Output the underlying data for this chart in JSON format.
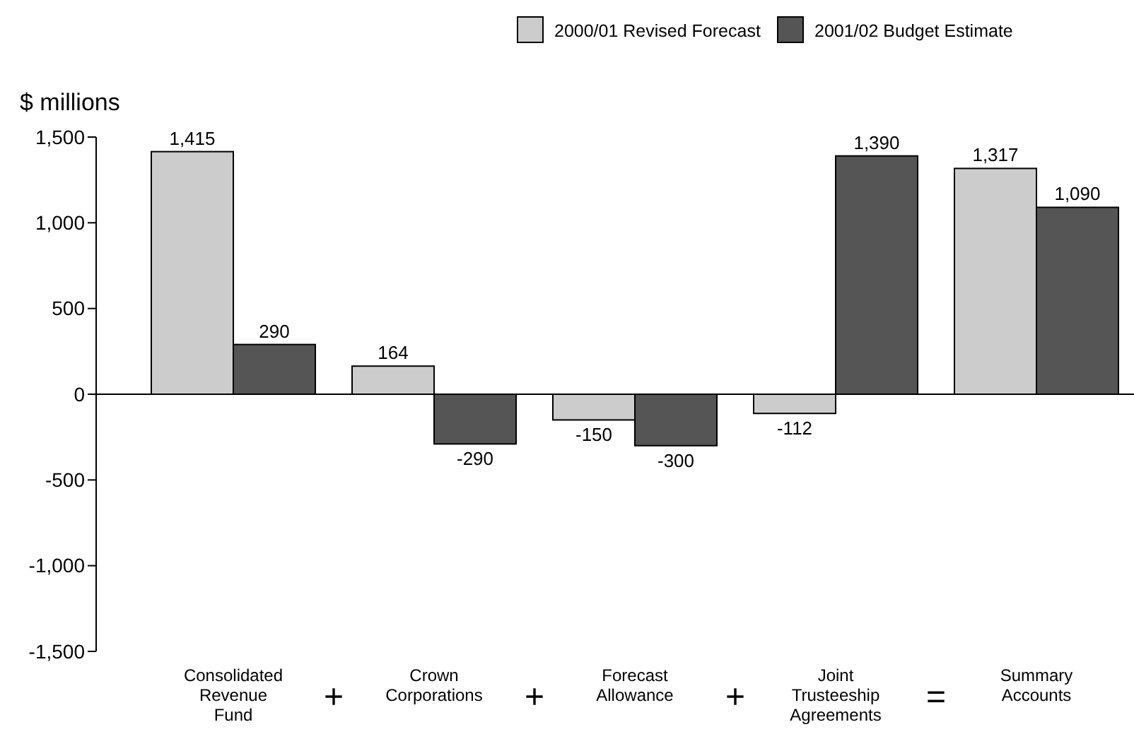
{
  "chart_data": {
    "type": "bar",
    "ylabel": "$ millions",
    "categories": [
      "Consolidated Revenue Fund",
      "Crown Corporations",
      "Forecast Allowance",
      "Joint Trusteeship Agreements",
      "Summary Accounts"
    ],
    "series": [
      {
        "name": "2000/01 Revised Forecast",
        "color": "#cccccc",
        "values": [
          1415,
          164,
          -150,
          -112,
          1317
        ],
        "value_labels": [
          "1,415",
          "164",
          "-150",
          "-112",
          "1,317"
        ]
      },
      {
        "name": "2001/02 Budget Estimate",
        "color": "#555555",
        "values": [
          290,
          -290,
          -300,
          1390,
          1090
        ],
        "value_labels": [
          "290",
          "-290",
          "-300",
          "1,390",
          "1,090"
        ]
      }
    ],
    "ylim": [
      -1500,
      1500
    ],
    "yticks": [
      {
        "value": -1500,
        "label": "-1,500"
      },
      {
        "value": -1000,
        "label": "-1,000"
      },
      -500,
      0,
      500,
      {
        "value": 1000,
        "label": "1,000"
      },
      {
        "value": 1500,
        "label": "1,500"
      }
    ],
    "annotations": [
      "+",
      "+",
      "+",
      "="
    ],
    "legend": "top right"
  }
}
